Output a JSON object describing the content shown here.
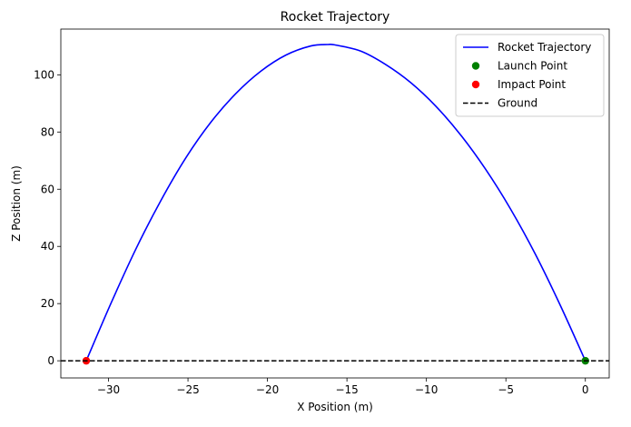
{
  "chart_data": {
    "type": "line",
    "title": "Rocket Trajectory",
    "xlabel": "X Position (m)",
    "ylabel": "Z Position (m)",
    "xlim": [
      -33,
      1.5
    ],
    "ylim": [
      -6,
      116
    ],
    "xticks": [
      -30,
      -25,
      -20,
      -15,
      -10,
      -5,
      0
    ],
    "xtick_labels": [
      "−30",
      "−25",
      "−20",
      "−15",
      "−10",
      "−5",
      "0"
    ],
    "yticks": [
      0,
      20,
      40,
      60,
      80,
      100
    ],
    "ytick_labels": [
      "0",
      "20",
      "40",
      "60",
      "80",
      "100"
    ],
    "grid": false,
    "legend_position": "top-right",
    "series": [
      {
        "name": "Rocket Trajectory",
        "kind": "line",
        "color": "#0000ff",
        "x": [
          0,
          -1.57,
          -3.14,
          -4.71,
          -6.28,
          -7.85,
          -9.42,
          -10.99,
          -12.56,
          -14.13,
          -15.7,
          -16.2,
          -17.27,
          -18.84,
          -20.41,
          -21.98,
          -23.55,
          -25.12,
          -26.69,
          -28.26,
          -29.83,
          -31.4
        ],
        "y": [
          0,
          19.3,
          37.2,
          53.1,
          67.0,
          79.0,
          89.1,
          97.3,
          103.6,
          108.3,
          110.4,
          110.6,
          110.1,
          106.9,
          101.3,
          93.5,
          83.5,
          71.1,
          56.2,
          39.3,
          20.3,
          0
        ]
      },
      {
        "name": "Launch Point",
        "kind": "scatter",
        "color": "#008000",
        "x": [
          0
        ],
        "y": [
          0
        ]
      },
      {
        "name": "Impact Point",
        "kind": "scatter",
        "color": "#ff0000",
        "x": [
          -31.4
        ],
        "y": [
          0
        ]
      },
      {
        "name": "Ground",
        "kind": "hline",
        "color": "#000000",
        "dashed": true,
        "y": 0
      }
    ]
  }
}
